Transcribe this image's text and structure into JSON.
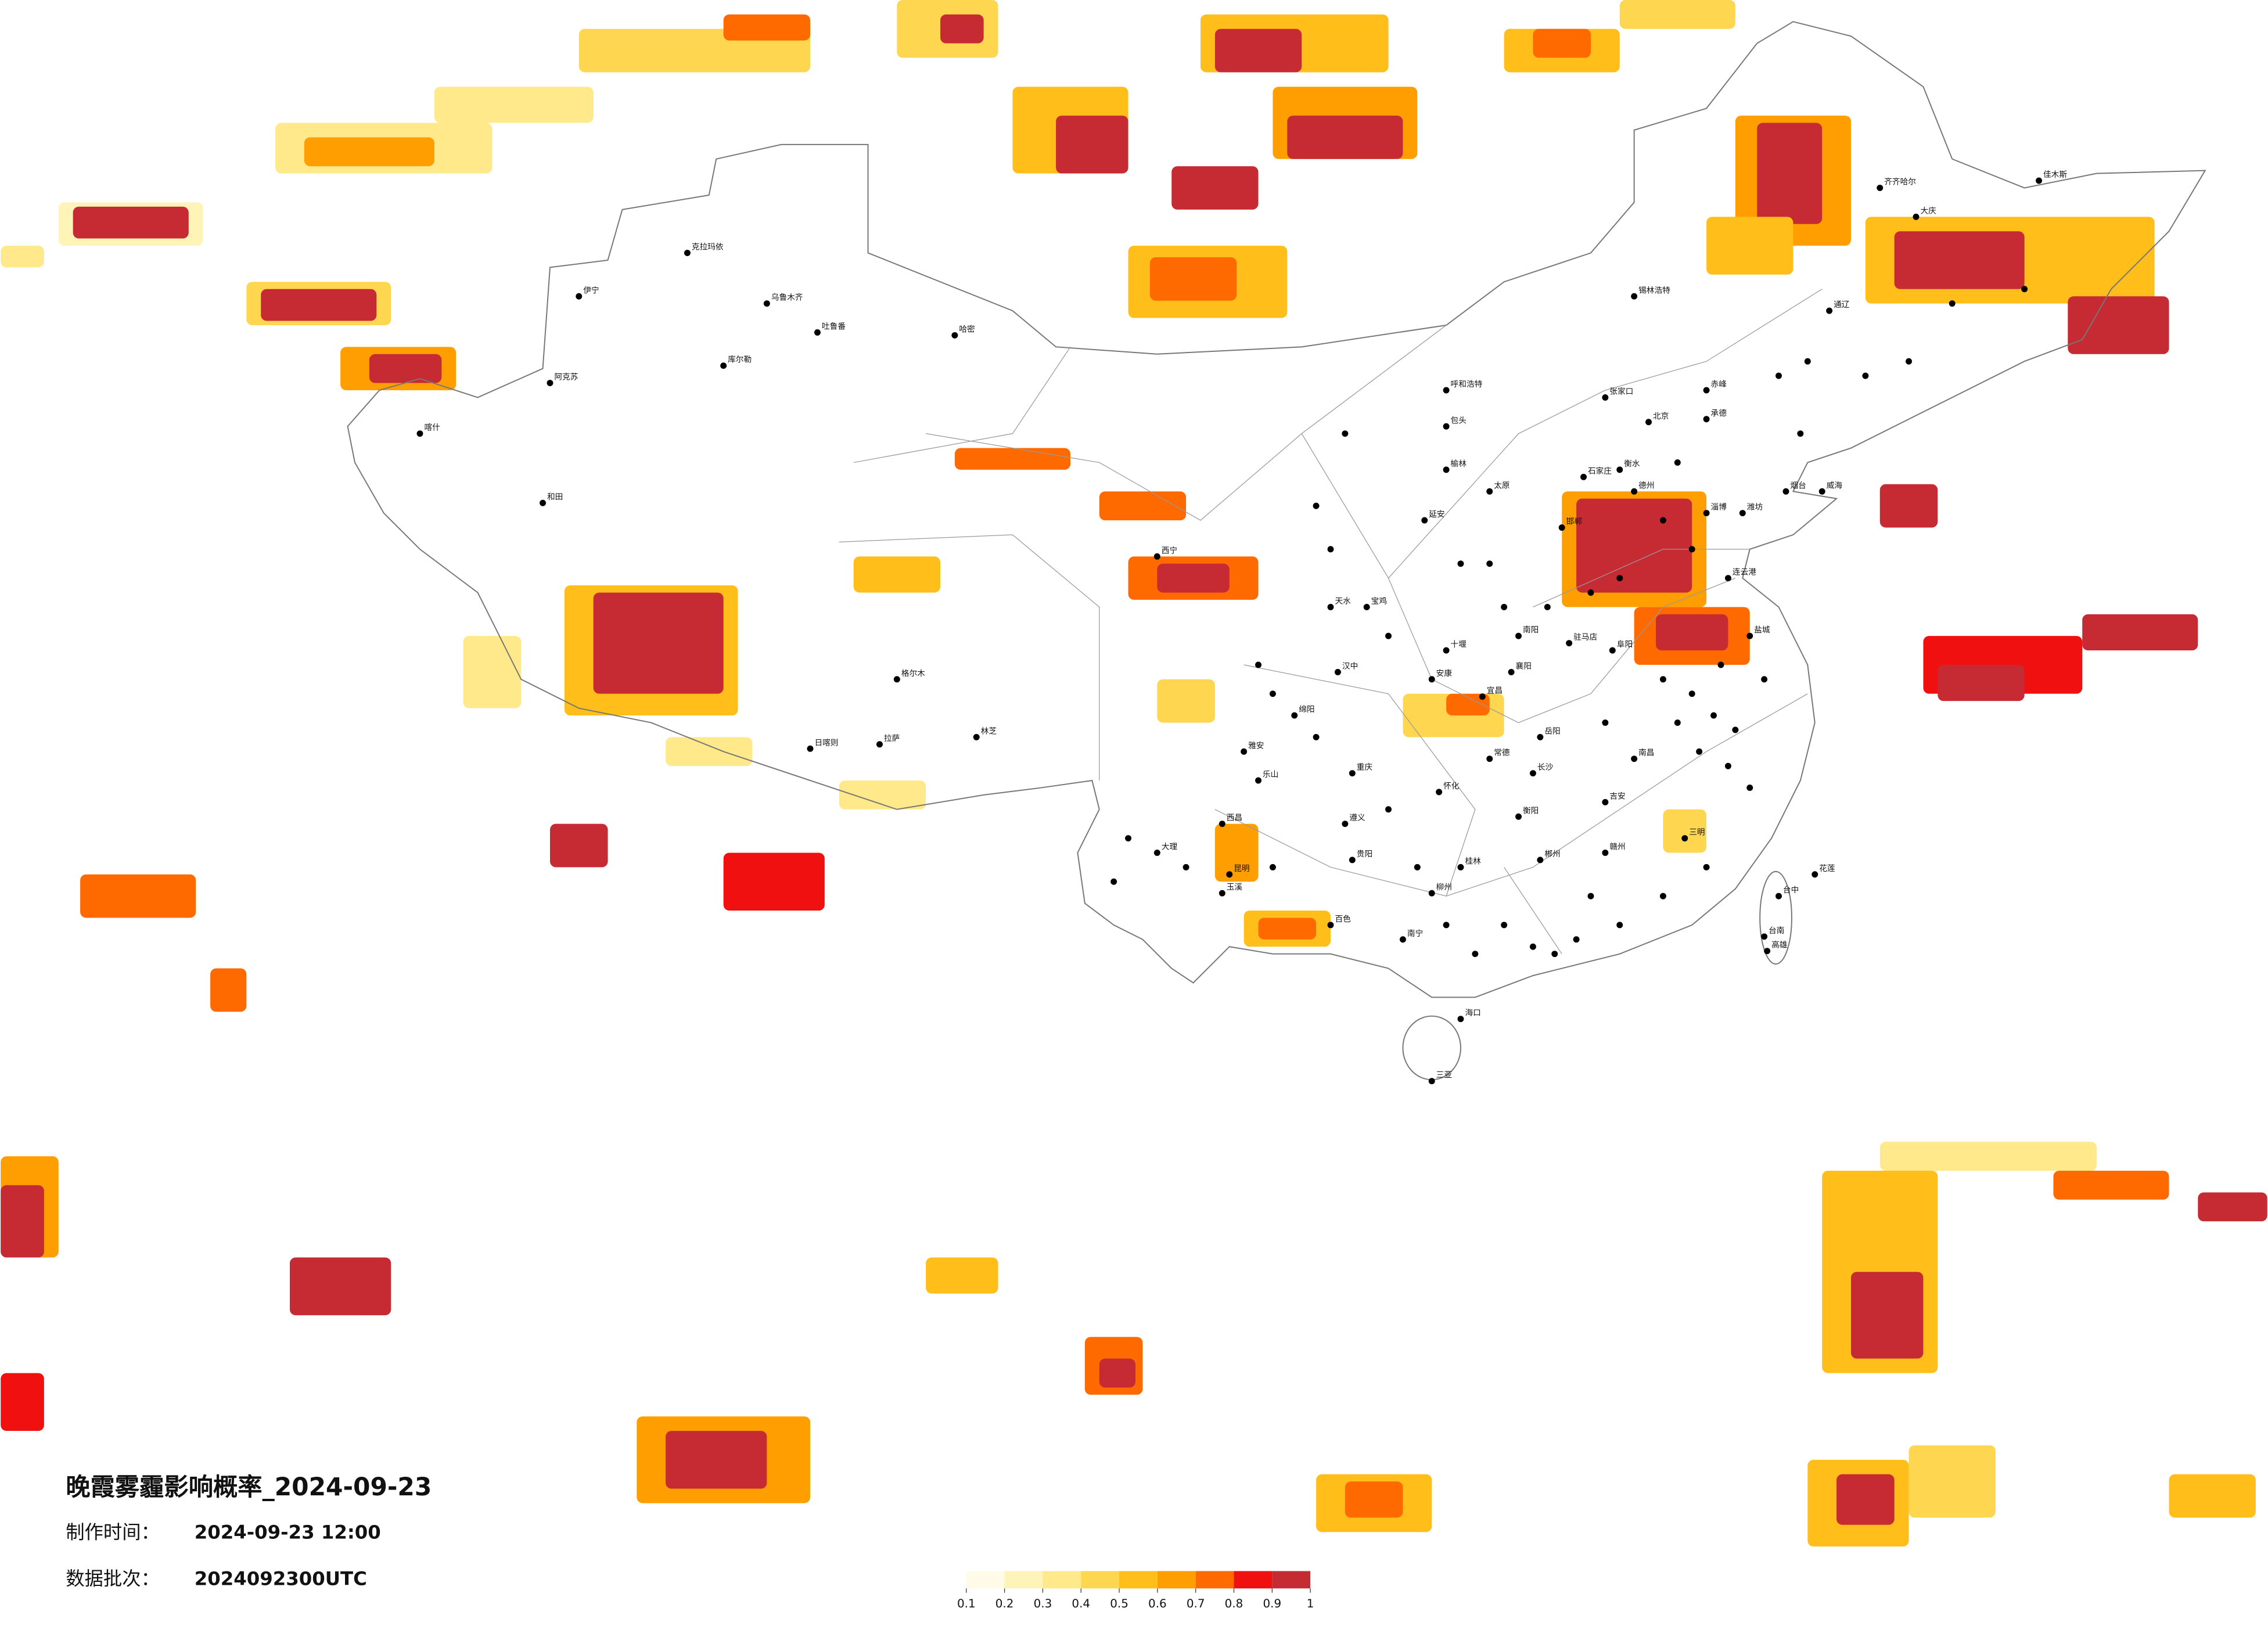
{
  "title": "晚霞雾霾影响概率_2024-09-23",
  "meta": [
    {
      "label": "制作时间：",
      "value": "2024-09-23 12:00"
    },
    {
      "label": "数据批次：",
      "value": "2024092300UTC"
    }
  ],
  "legend": {
    "ticks": [
      0.1,
      0.2,
      0.3,
      0.4,
      0.5,
      0.6,
      0.7,
      0.8,
      0.9,
      1
    ],
    "colors": [
      "#fffbe8",
      "#fff4b8",
      "#ffe98a",
      "#ffd650",
      "#ffbe1a",
      "#ff9e00",
      "#ff6a00",
      "#f01010",
      "#c62a32"
    ]
  },
  "cities": [
    "乌鲁木齐",
    "克拉玛依",
    "吐鲁番",
    "哈密",
    "伊宁",
    "库尔勒",
    "阿克苏",
    "喀什",
    "和田",
    "拉萨",
    "日喀则",
    "林芝",
    "格尔木",
    "西宁",
    "锡林浩特",
    "呼和浩特",
    "包头",
    "张家口",
    "北京",
    "石家庄",
    "太原",
    "延安",
    "榆林",
    "天水",
    "宝鸡",
    "汉中",
    "安康",
    "绵阳",
    "雅安",
    "乐山",
    "重庆",
    "遵义",
    "贵阳",
    "西昌",
    "大理",
    "昆明",
    "玉溪",
    "百色",
    "南宁",
    "柳州",
    "桂林",
    "海口",
    "三亚",
    "衡阳",
    "长沙",
    "岳阳",
    "常德",
    "怀化",
    "郴州",
    "赣州",
    "吉安",
    "南昌",
    "三明",
    "宜昌",
    "襄阳",
    "十堰",
    "南阳",
    "驻马店",
    "阜阳",
    "邯郸",
    "德州",
    "衡水",
    "淄博",
    "潍坊",
    "烟台",
    "威海",
    "连云港",
    "盐城",
    "齐齐哈尔",
    "大庆",
    "佳木斯",
    "通辽",
    "赤峰",
    "承德",
    "台中",
    "台南",
    "高雄",
    "花莲"
  ]
}
